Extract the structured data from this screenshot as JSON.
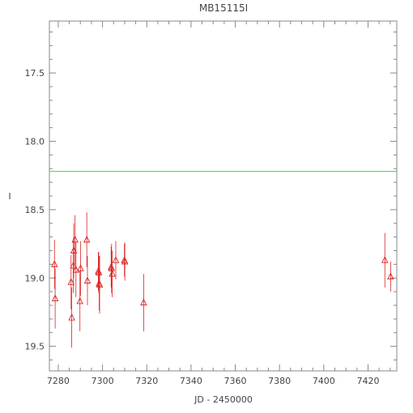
{
  "chart_data": {
    "type": "scatter",
    "title": "MB15115I",
    "xlabel": "JD - 2450000",
    "ylabel": "I",
    "xlim": [
      7276,
      7433
    ],
    "ylim": [
      19.68,
      17.12
    ],
    "y_inverted": true,
    "grid": false,
    "legend": "none",
    "x_ticks": [
      7280,
      7300,
      7320,
      7340,
      7360,
      7380,
      7400,
      7420
    ],
    "y_ticks": [
      17.5,
      18.0,
      18.5,
      19.0,
      19.5
    ],
    "x_tick_labels": [
      "7280",
      "7300",
      "7320",
      "7340",
      "7360",
      "7380",
      "7400",
      "7420"
    ],
    "y_tick_labels": [
      "17.5",
      "18.0",
      "18.5",
      "19.0",
      "19.5"
    ],
    "reference_line": {
      "y": 18.22,
      "color": "#33dd33"
    },
    "point_color": "#dd2222",
    "axis_color": "#888888",
    "points": [
      {
        "x": 7278.3,
        "y": 18.9,
        "err": 0.18
      },
      {
        "x": 7278.6,
        "y": 19.15,
        "err": 0.22
      },
      {
        "x": 7285.8,
        "y": 19.03,
        "err": 0.2
      },
      {
        "x": 7286.1,
        "y": 19.29,
        "err": 0.22
      },
      {
        "x": 7286.8,
        "y": 18.91,
        "err": 0.2
      },
      {
        "x": 7287.0,
        "y": 18.8,
        "err": 0.2
      },
      {
        "x": 7287.6,
        "y": 18.72,
        "err": 0.18
      },
      {
        "x": 7288.0,
        "y": 18.94,
        "err": 0.2
      },
      {
        "x": 7289.8,
        "y": 19.17,
        "err": 0.22
      },
      {
        "x": 7290.1,
        "y": 18.93,
        "err": 0.2
      },
      {
        "x": 7292.9,
        "y": 18.72,
        "err": 0.2
      },
      {
        "x": 7293.2,
        "y": 19.02,
        "err": 0.18
      },
      {
        "x": 7298.1,
        "y": 18.95,
        "err": 0.14
      },
      {
        "x": 7298.3,
        "y": 18.96,
        "err": 0.15
      },
      {
        "x": 7298.5,
        "y": 19.04,
        "err": 0.2
      },
      {
        "x": 7298.7,
        "y": 19.05,
        "err": 0.21
      },
      {
        "x": 7303.9,
        "y": 18.92,
        "err": 0.15
      },
      {
        "x": 7304.1,
        "y": 18.93,
        "err": 0.18
      },
      {
        "x": 7304.4,
        "y": 18.97,
        "err": 0.17
      },
      {
        "x": 7306.0,
        "y": 18.87,
        "err": 0.14
      },
      {
        "x": 7309.9,
        "y": 18.87,
        "err": 0.12
      },
      {
        "x": 7310.1,
        "y": 18.88,
        "err": 0.14
      },
      {
        "x": 7318.6,
        "y": 19.18,
        "err": 0.21
      },
      {
        "x": 7427.6,
        "y": 18.87,
        "err": 0.2
      },
      {
        "x": 7430.2,
        "y": 18.99,
        "err": 0.11
      }
    ]
  }
}
